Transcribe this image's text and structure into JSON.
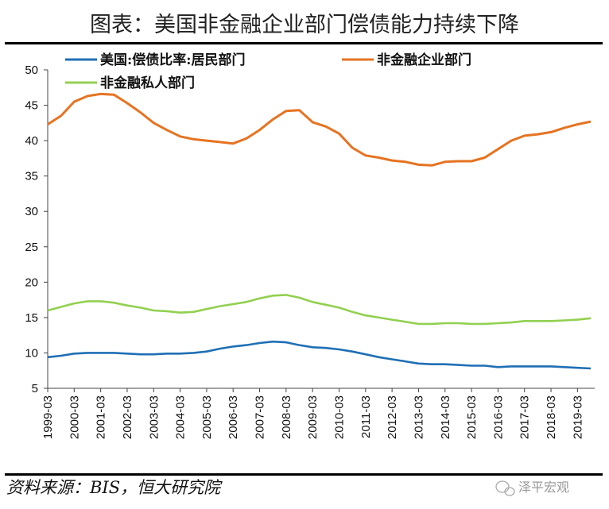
{
  "chart_data": {
    "type": "line",
    "title": "图表：美国非金融企业部门偿债能力持续下降",
    "xlabel": "",
    "ylabel": "",
    "ylim": [
      5,
      50
    ],
    "yticks": [
      "5",
      "10",
      "15",
      "20",
      "25",
      "30",
      "35",
      "40",
      "45",
      "50"
    ],
    "xticks": [
      "1999-03",
      "2000-03",
      "2001-03",
      "2002-03",
      "2003-03",
      "2004-03",
      "2005-03",
      "2006-03",
      "2007-03",
      "2008-03",
      "2009-03",
      "2010-03",
      "2011-03",
      "2012-03",
      "2013-03",
      "2014-03",
      "2015-03",
      "2016-03",
      "2017-03",
      "2018-03",
      "2019-03"
    ],
    "x_start": 1999.0,
    "x_step": 0.5,
    "grid": false,
    "legend_position": "top-left",
    "series": [
      {
        "name": "美国:偿债比率:居民部门",
        "color": "#1f6fb5",
        "values": [
          9.4,
          9.6,
          9.9,
          10.0,
          10.0,
          10.0,
          9.9,
          9.8,
          9.8,
          9.9,
          9.9,
          10.0,
          10.2,
          10.6,
          10.9,
          11.1,
          11.4,
          11.6,
          11.5,
          11.1,
          10.8,
          10.7,
          10.5,
          10.2,
          9.8,
          9.4,
          9.1,
          8.8,
          8.5,
          8.4,
          8.4,
          8.3,
          8.2,
          8.2,
          8.0,
          8.1,
          8.1,
          8.1,
          8.1,
          8.0,
          7.9,
          7.8
        ]
      },
      {
        "name": "非金融企业部门",
        "color": "#e67321",
        "values": [
          42.3,
          43.5,
          45.5,
          46.3,
          46.6,
          46.5,
          45.3,
          44.0,
          42.5,
          41.5,
          40.6,
          40.2,
          40.0,
          39.8,
          39.6,
          40.3,
          41.5,
          43.0,
          44.2,
          44.3,
          42.6,
          42.0,
          41.0,
          39.0,
          37.9,
          37.6,
          37.2,
          37.0,
          36.6,
          36.5,
          37.0,
          37.1,
          37.1,
          37.6,
          38.8,
          40.0,
          40.7,
          40.9,
          41.2,
          41.8,
          42.3,
          42.7
        ]
      },
      {
        "name": "非金融私人部门",
        "color": "#92d050",
        "values": [
          16.0,
          16.5,
          17.0,
          17.3,
          17.3,
          17.1,
          16.7,
          16.4,
          16.0,
          15.9,
          15.7,
          15.8,
          16.2,
          16.6,
          16.9,
          17.2,
          17.7,
          18.1,
          18.2,
          17.8,
          17.2,
          16.8,
          16.4,
          15.8,
          15.3,
          15.0,
          14.7,
          14.4,
          14.1,
          14.1,
          14.2,
          14.2,
          14.1,
          14.1,
          14.2,
          14.3,
          14.5,
          14.5,
          14.5,
          14.6,
          14.7,
          14.9
        ]
      }
    ]
  },
  "footer": {
    "source": "资料来源：BIS，恒大研究院",
    "watermark": "泽平宏观"
  }
}
